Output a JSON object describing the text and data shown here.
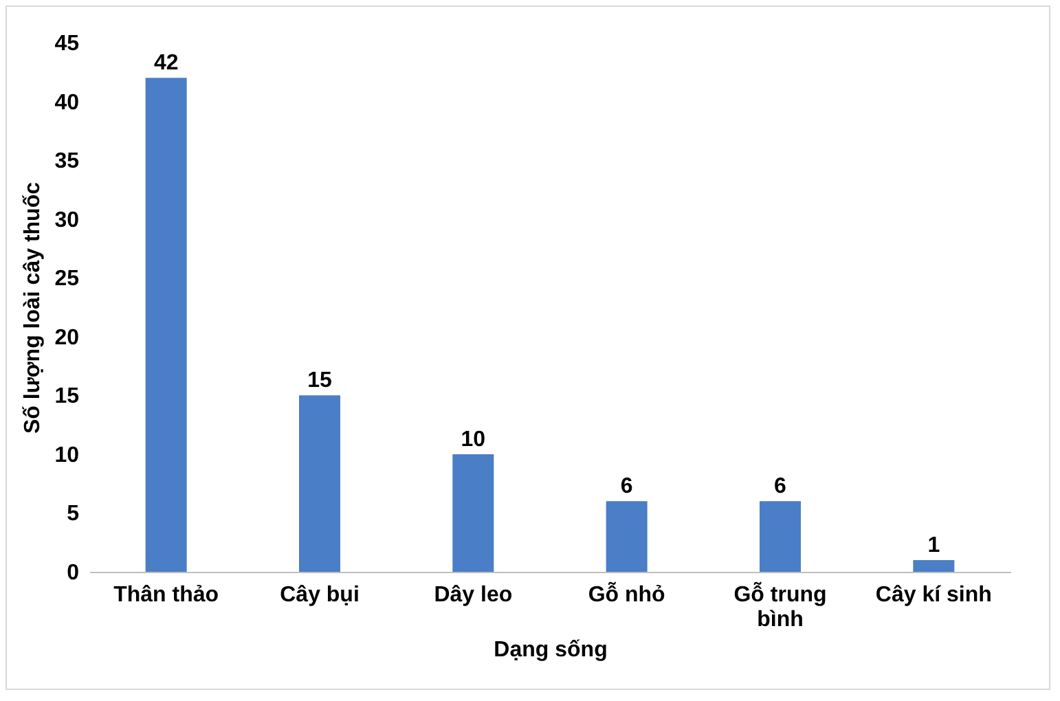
{
  "chart_data": {
    "type": "bar",
    "xlabel": "Dạng sống",
    "ylabel": "Số lượng loài cây thuốc",
    "categories": [
      "Thân thảo",
      "Cây bụi",
      "Dây leo",
      "Gỗ nhỏ",
      "Gỗ trung bình",
      "Cây kí sinh"
    ],
    "values": [
      42,
      15,
      10,
      6,
      6,
      1
    ],
    "color": "#4a7ec6",
    "ylim": [
      0,
      45
    ],
    "yticks": [
      0,
      5,
      10,
      15,
      20,
      25,
      30,
      35,
      40,
      45
    ],
    "grid": false,
    "data_labels": true
  }
}
